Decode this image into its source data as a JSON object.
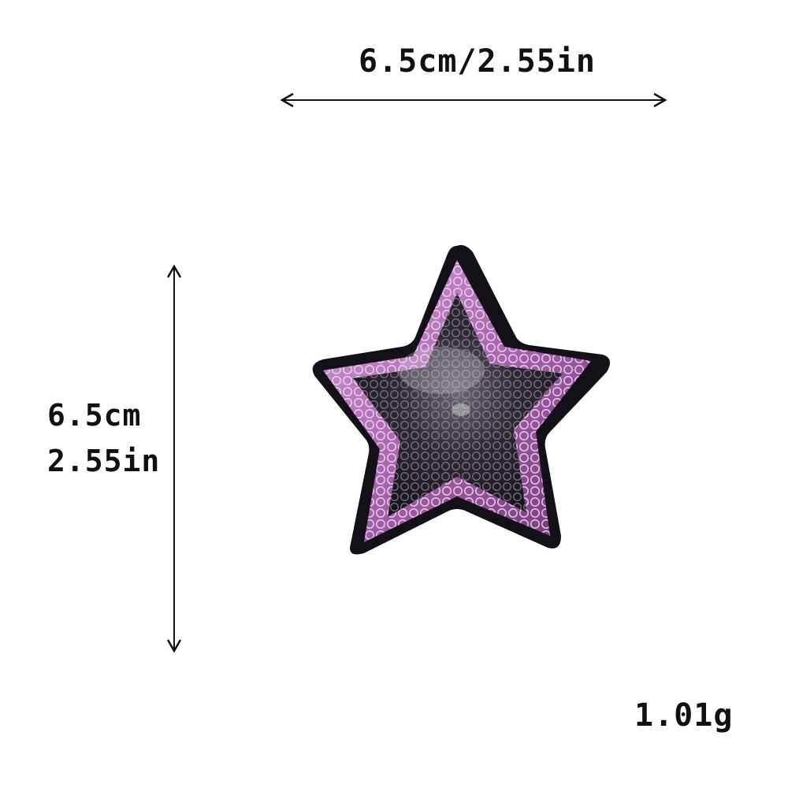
{
  "dimensions": {
    "width_label": "6.5cm/2.55in",
    "height_label_cm": "6.5cm",
    "height_label_in": "2.55in",
    "weight_label": "1.01g"
  },
  "product": {
    "item": "sequin star patch",
    "colors": {
      "border": "#141018",
      "outer_ring": "#c98ecf",
      "outer_ring_dark": "#7a3f7e",
      "center": "#2a2530",
      "center_highlight": "#8f8a95",
      "background": "#ffffff",
      "text": "#111111"
    }
  },
  "arrows": {
    "horizontal_icon": "double-headed-horizontal-arrow",
    "vertical_icon": "double-headed-vertical-arrow"
  }
}
